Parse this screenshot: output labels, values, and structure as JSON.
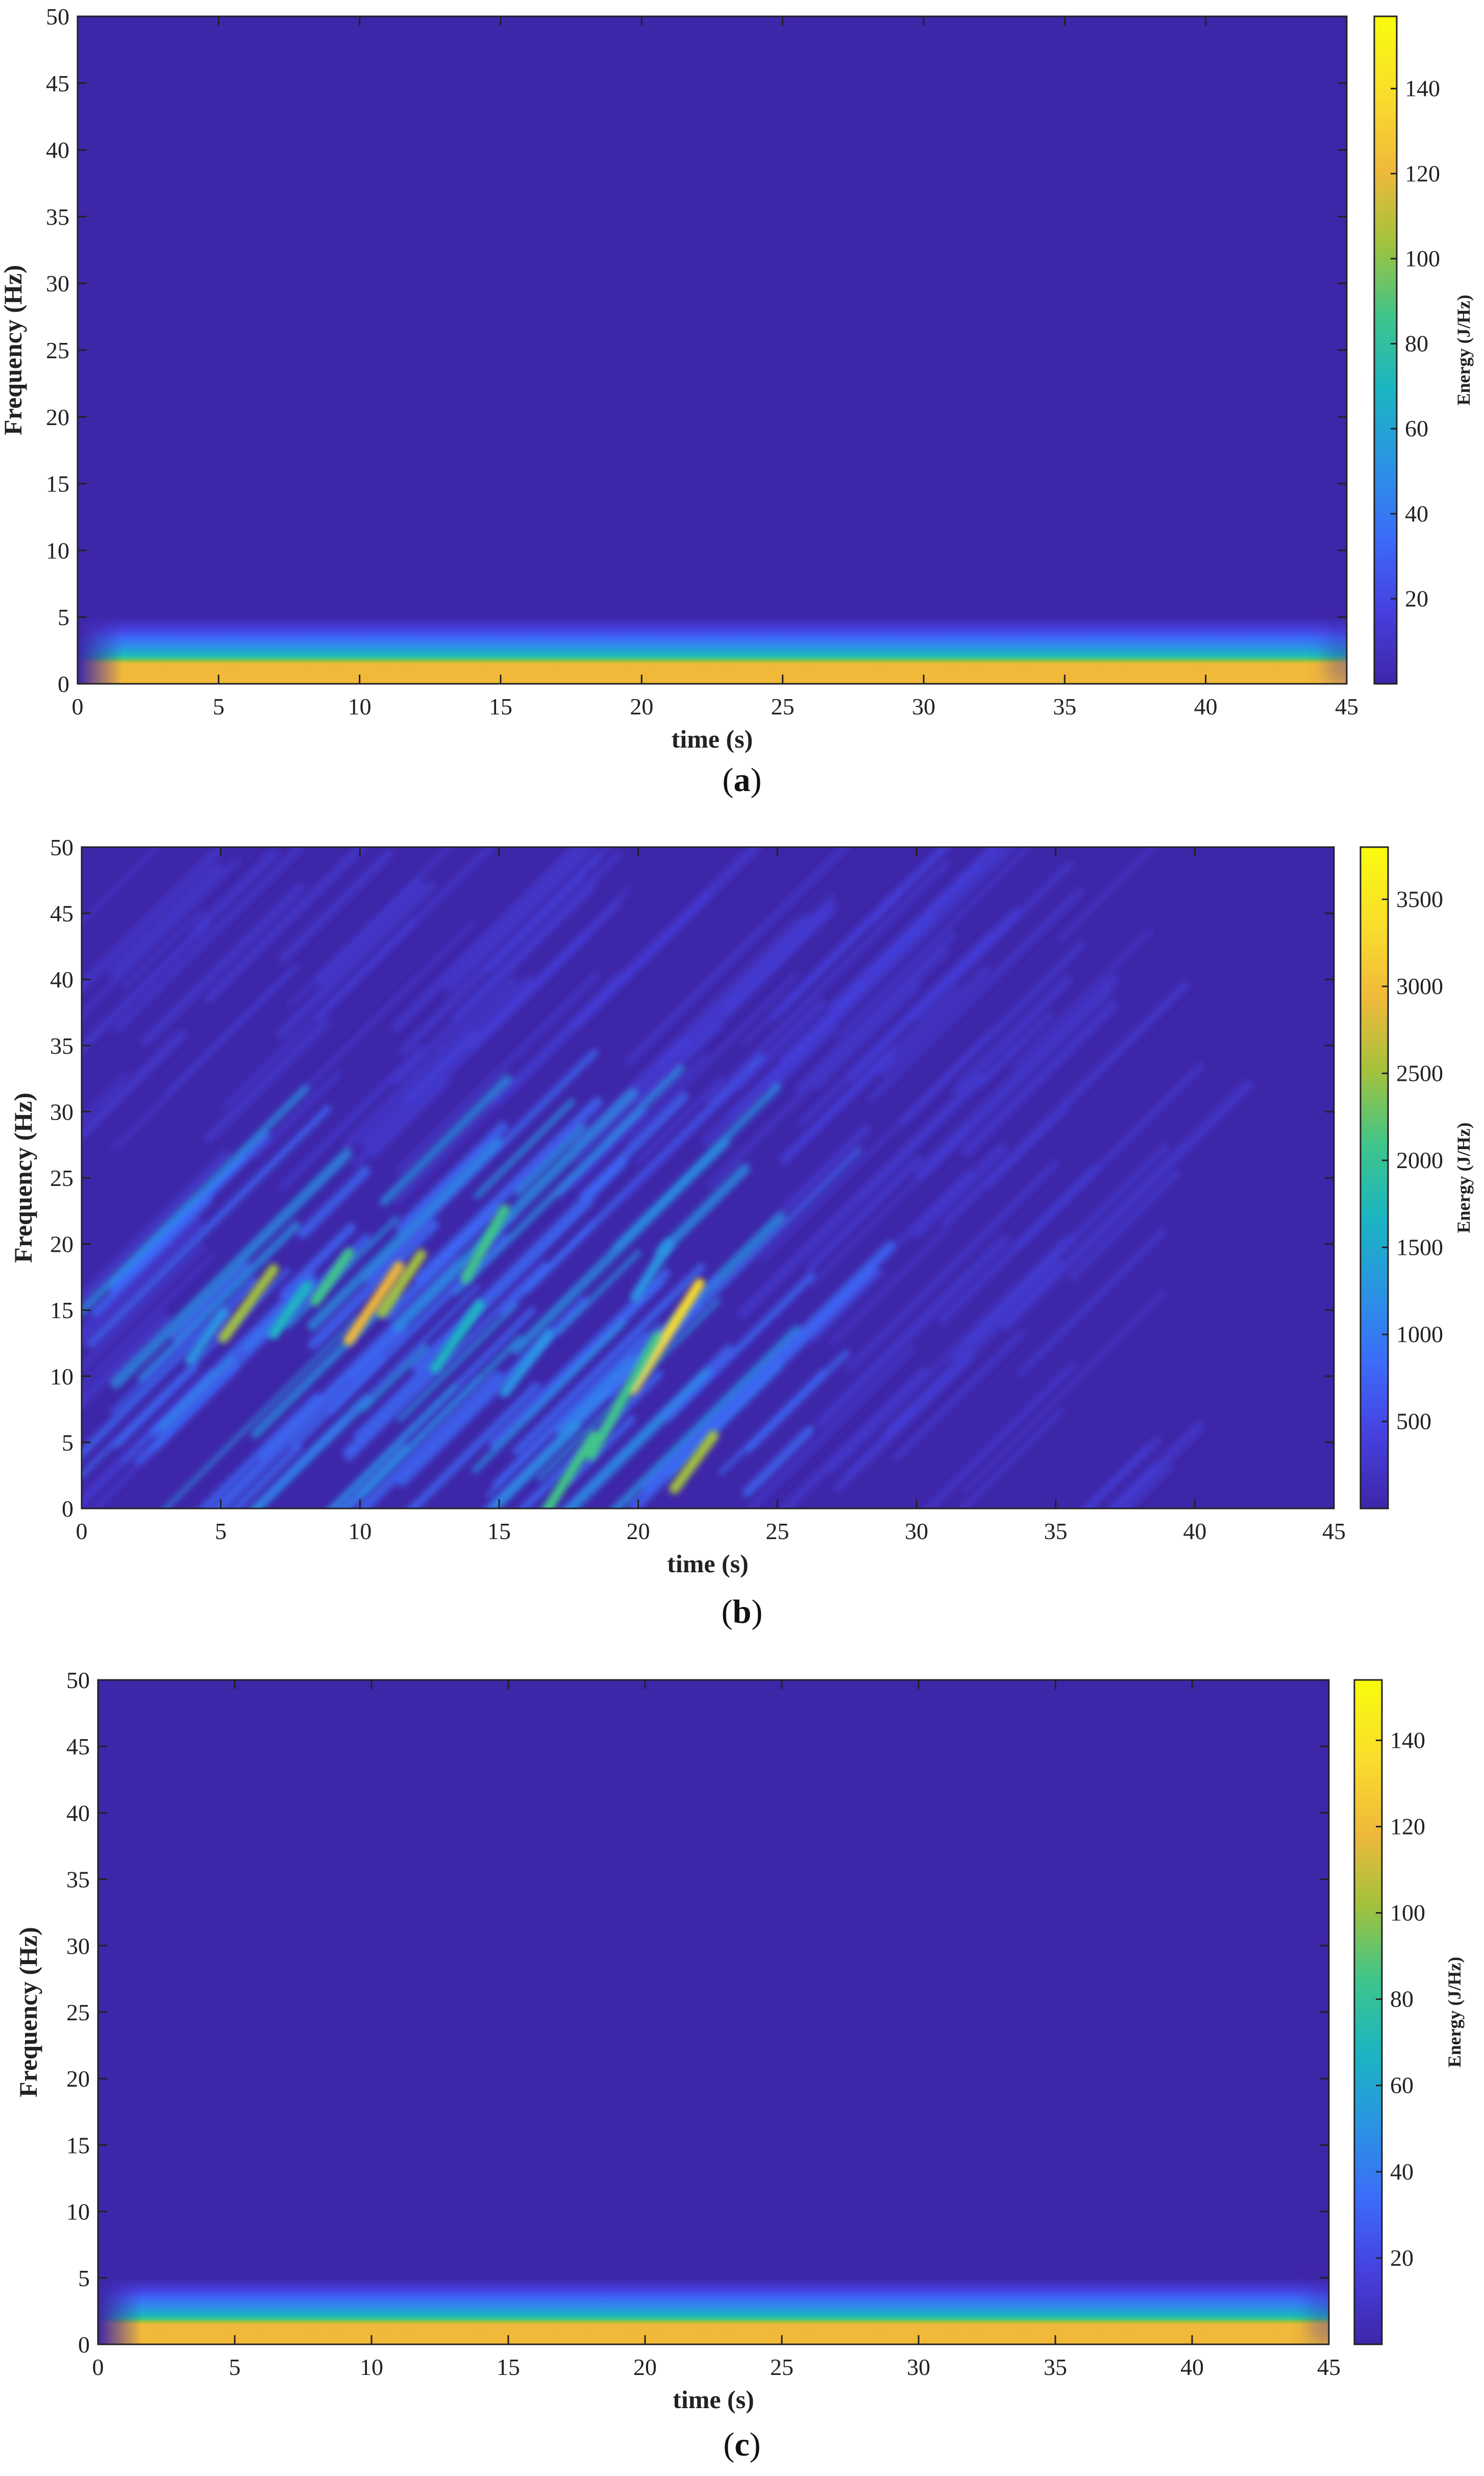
{
  "chart_data": [
    {
      "type": "heatmap",
      "panel_label": "a",
      "xlabel": "time (s)",
      "ylabel": "Frequency (Hz)",
      "colorbar_label": "Energy (J/Hz)",
      "xlim": [
        0,
        45
      ],
      "ylim": [
        0,
        50
      ],
      "x_ticks": [
        0,
        5,
        10,
        15,
        20,
        25,
        30,
        35,
        40,
        45
      ],
      "y_ticks": [
        0,
        5,
        10,
        15,
        20,
        25,
        30,
        35,
        40,
        45,
        50
      ],
      "colorbar_range": [
        0,
        157
      ],
      "colorbar_ticks": [
        20,
        40,
        60,
        80,
        100,
        120,
        140
      ],
      "colormap": "parula",
      "energy_pattern": "horizontal band concentrated at 0-2 Hz (peak ~140 J/Hz), fading to background above ~5 Hz, across entire 0-45 s"
    },
    {
      "type": "heatmap",
      "panel_label": "b",
      "xlabel": "time (s)",
      "ylabel": "Frequency (Hz)",
      "colorbar_label": "Energy (J/Hz)",
      "xlim": [
        0,
        45
      ],
      "ylim": [
        0,
        50
      ],
      "x_ticks": [
        0,
        5,
        10,
        15,
        20,
        25,
        30,
        35,
        40,
        45
      ],
      "y_ticks": [
        0,
        5,
        10,
        15,
        20,
        25,
        30,
        35,
        40,
        45,
        50
      ],
      "colorbar_range": [
        0,
        3800
      ],
      "colorbar_ticks": [
        500,
        1000,
        1500,
        2000,
        2500,
        3000,
        3500
      ],
      "colormap": "parula",
      "energy_pattern": "diagonal streaks between 2-25 s and 0-25 Hz; peaks near 6 s/15 Hz, 10-11 s/15-17 Hz, 17-22 s/0-15 Hz"
    },
    {
      "type": "heatmap",
      "panel_label": "c",
      "xlabel": "time (s)",
      "ylabel": "Frequency (Hz)",
      "colorbar_label": "Energy (J/Hz)",
      "xlim": [
        0,
        45
      ],
      "ylim": [
        0,
        50
      ],
      "x_ticks": [
        0,
        5,
        10,
        15,
        20,
        25,
        30,
        35,
        40,
        45
      ],
      "y_ticks": [
        0,
        5,
        10,
        15,
        20,
        25,
        30,
        35,
        40,
        45,
        50
      ],
      "colorbar_range": [
        0,
        154
      ],
      "colorbar_ticks": [
        20,
        40,
        60,
        80,
        100,
        120,
        140
      ],
      "colormap": "parula",
      "energy_pattern": "horizontal band concentrated at 0-2 Hz (peak ~140 J/Hz), fading to background above ~5 Hz, across entire 0-45 s"
    }
  ],
  "colors": {
    "parula_stops": [
      "#3e26a8",
      "#4640df",
      "#3c6cf9",
      "#2a94e3",
      "#1bb5c1",
      "#3fc58a",
      "#a2c23d",
      "#f0b93b",
      "#f9dd2c",
      "#f9fb0e"
    ],
    "background": "#3e26a8"
  }
}
